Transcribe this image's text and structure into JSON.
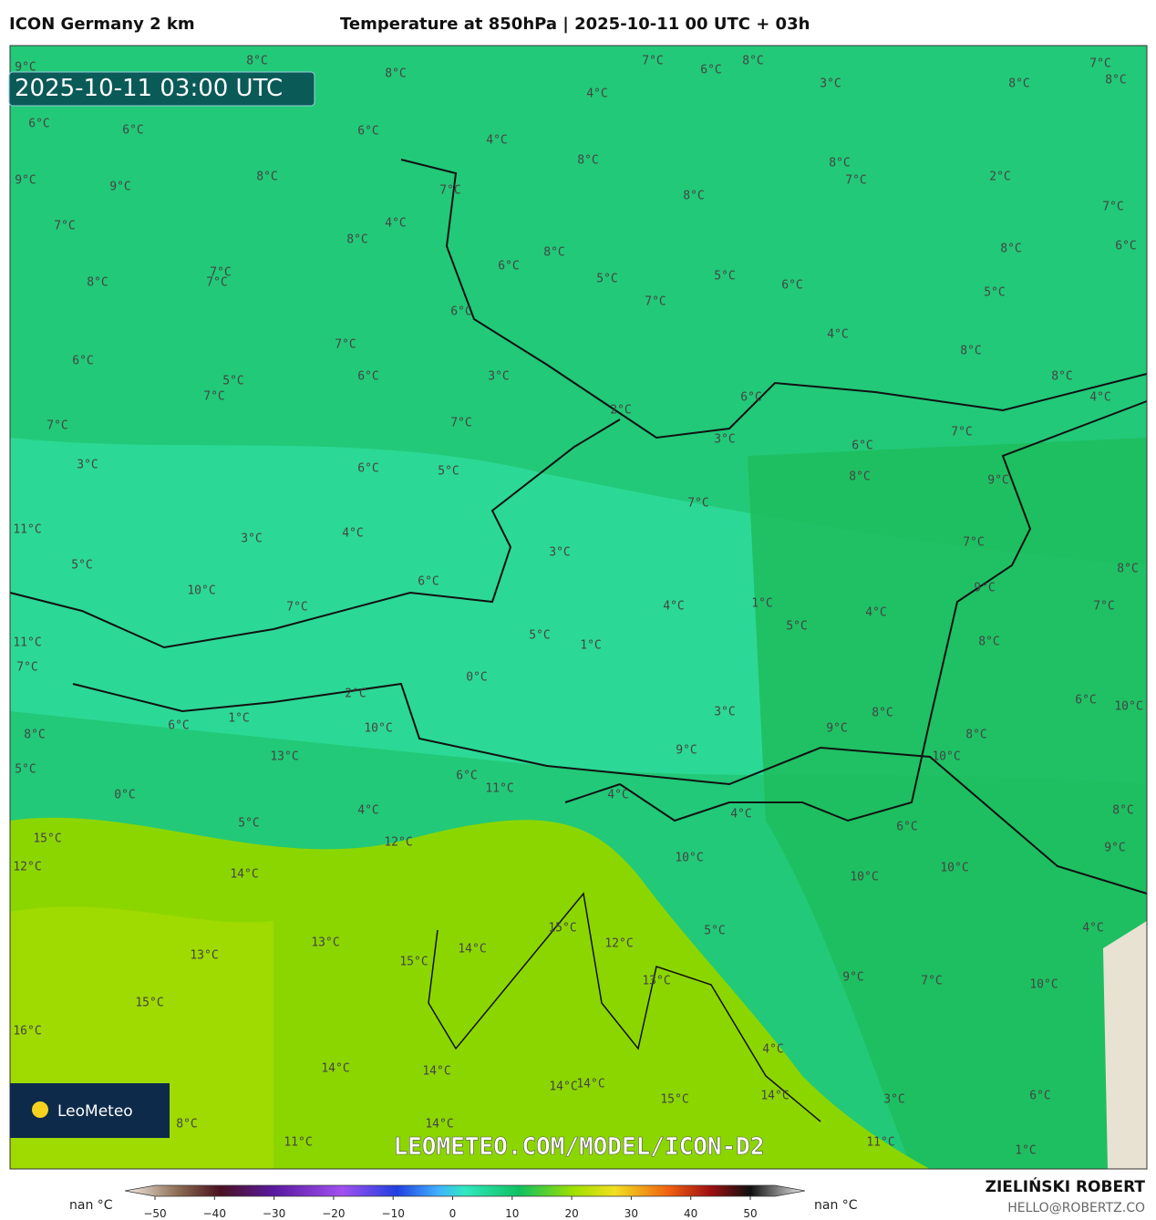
{
  "header": {
    "model": "ICON Germany 2 km",
    "title": "Temperature at 850hPa | 2025-10-11 00 UTC + 03h"
  },
  "timestamp": "2025-10-11 03:00 UTC",
  "logo": "LeoMeteo",
  "watermark": "LEOMETEO.COM/MODEL/ICON-D2",
  "map_labels": [
    "9°C",
    "8°C",
    "8°C",
    "7°C",
    "6°C",
    "8°C",
    "3°C",
    "7°C",
    "8°C",
    "8°C",
    "6°C",
    "6°C",
    "6°C",
    "4°C",
    "4°C",
    "8°C",
    "8°C",
    "7°C",
    "2°C",
    "9°C",
    "9°C",
    "8°C",
    "7°C",
    "8°C",
    "7°C",
    "7°C",
    "4°C",
    "8°C",
    "6°C",
    "8°C",
    "8°C",
    "6°C",
    "7°C",
    "7°C",
    "8°C",
    "5°C",
    "5°C",
    "6°C",
    "7°C",
    "5°C",
    "6°C",
    "7°C",
    "4°C",
    "8°C",
    "6°C",
    "6°C",
    "3°C",
    "5°C",
    "8°C",
    "7°C",
    "6°C",
    "4°C",
    "2°C",
    "7°C",
    "7°C",
    "7°C",
    "3°C",
    "6°C",
    "3°C",
    "6°C",
    "5°C",
    "8°C",
    "9°C",
    "7°C",
    "11°C",
    "3°C",
    "4°C",
    "7°C",
    "3°C",
    "5°C",
    "6°C",
    "8°C",
    "10°C",
    "9°C",
    "7°C",
    "4°C",
    "1°C",
    "4°C",
    "7°C",
    "5°C",
    "5°C",
    "1°C",
    "11°C",
    "8°C",
    "7°C",
    "0°C",
    "2°C",
    "6°C",
    "10°C",
    "3°C",
    "8°C",
    "6°C",
    "1°C",
    "10°C",
    "9°C",
    "8°C",
    "8°C",
    "9°C",
    "13°C",
    "10°C",
    "5°C",
    "6°C",
    "11°C",
    "0°C",
    "4°C",
    "4°C",
    "4°C",
    "8°C",
    "5°C",
    "6°C",
    "15°C",
    "12°C",
    "9°C",
    "10°C",
    "12°C",
    "14°C",
    "10°C",
    "10°C",
    "15°C",
    "5°C",
    "4°C",
    "12°C",
    "13°C",
    "14°C",
    "13°C",
    "15°C",
    "13°C",
    "9°C",
    "7°C",
    "10°C",
    "15°C",
    "16°C",
    "4°C",
    "14°C",
    "14°C",
    "14°C",
    "14°C",
    "14°C",
    "6°C",
    "15°C",
    "3°C",
    "8°C",
    "14°C",
    "11°C",
    "11°C",
    "1°C"
  ],
  "colorbar": {
    "min_label": "nan °C",
    "max_label": "nan °C",
    "ticks": [
      {
        "value": -50,
        "label": "−50"
      },
      {
        "value": -40,
        "label": "−40"
      },
      {
        "value": -30,
        "label": "−30"
      },
      {
        "value": -20,
        "label": "−20"
      },
      {
        "value": -10,
        "label": "−10"
      },
      0,
      10,
      20,
      30,
      40,
      50
    ],
    "range": [
      -50,
      50
    ]
  },
  "author": {
    "name": "ZIELIŃSKI ROBERT",
    "email": "HELLO@ROBERTZ.CO"
  }
}
